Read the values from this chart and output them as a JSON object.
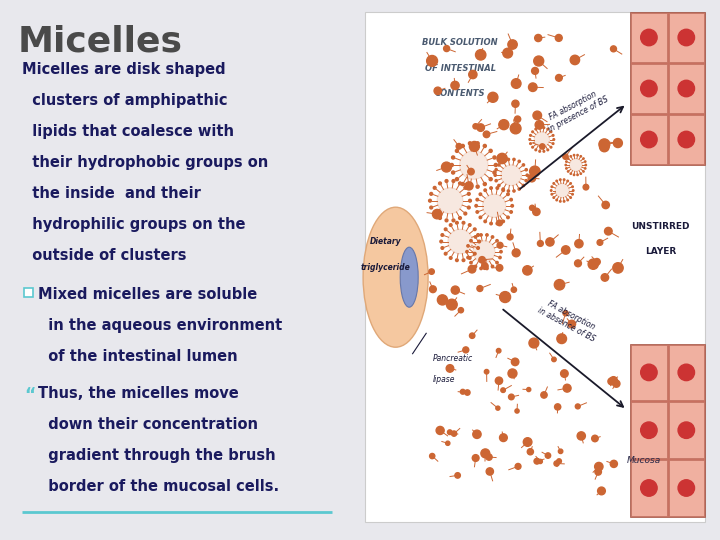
{
  "background_color": "#e8e8ed",
  "title": "Micelles",
  "title_color": "#4a4a4a",
  "title_fontsize": 26,
  "text_color": "#1a1a5e",
  "text_fontsize": 10.5,
  "bullet_color": "#5bc8d0",
  "underline_color": "#5bc8d0",
  "para1_lines": [
    "Micelles are disk shaped",
    "  clusters of amphipathic",
    "  lipids that coalesce with",
    "  their hydrophobic groups on",
    "  the inside  and their",
    "  hydrophilic groups on the",
    "  outside of clusters"
  ],
  "bullet1_lines": [
    "Mixed micelles are soluble",
    "  in the aqueous environment",
    "  of the intestinal lumen"
  ],
  "bullet2_lines": [
    "Thus, the micelles move",
    "  down their concentration",
    "  gradient through the brush",
    "  border of the mucosal cells."
  ]
}
